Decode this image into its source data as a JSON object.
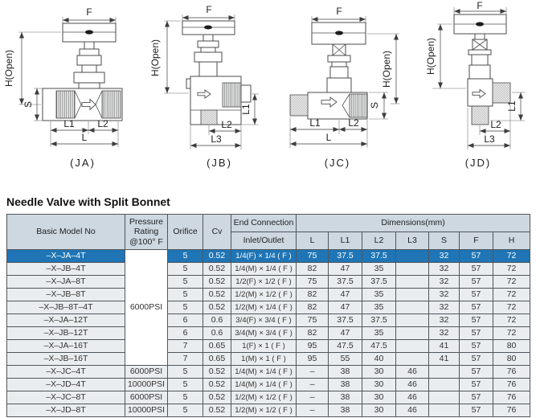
{
  "section": {
    "title": "Needle Valve with Split Bonnet"
  },
  "diagrams": {
    "items": [
      {
        "id": "JA",
        "caption": "(JA)",
        "labels": {
          "f": "F",
          "h": "H(Open)",
          "s": "S",
          "l1": "L1",
          "l2": "L2",
          "l": "L"
        }
      },
      {
        "id": "JB",
        "caption": "(JB)",
        "labels": {
          "f": "F",
          "h": "H(Open)",
          "l1": "L1",
          "l2": "L2",
          "l3": "L3"
        }
      },
      {
        "id": "JC",
        "caption": "(JC)",
        "labels": {
          "f": "F",
          "h": "H(Open)",
          "s": "S",
          "l1": "L1",
          "l2": "L2",
          "l": "L"
        }
      },
      {
        "id": "JD",
        "caption": "(JD)",
        "labels": {
          "f": "F",
          "h": "H(Open)",
          "l1": "L1",
          "l2": "L2",
          "l3": "L3"
        }
      }
    ]
  },
  "table": {
    "headers": {
      "basic_model": "Basic Model No",
      "pressure": "Pressure Rating @100° F",
      "orifice": "Orifice",
      "cv": "Cv",
      "end_connection": "End Connection",
      "inlet_outlet": "Inlet/Outlet",
      "dimensions": "Dimensions(mm)",
      "dims": [
        "L",
        "L1",
        "L2",
        "L3",
        "S",
        "F",
        "H"
      ]
    },
    "pressure_group": {
      "value": "6000PSI",
      "rowspan": 9
    },
    "rows": [
      {
        "model": "–X–JA–4T",
        "pressure": null,
        "orifice": "5",
        "cv": "0.52",
        "conn": "1/4(F) × 1/4 ( F )",
        "dims": [
          "75",
          "37.5",
          "37.5",
          "",
          "32",
          "57",
          "72"
        ],
        "highlight": true
      },
      {
        "model": "–X–JB–4T",
        "pressure": null,
        "orifice": "5",
        "cv": "0.52",
        "conn": "1/4(M) × 1/4 ( F )",
        "dims": [
          "82",
          "47",
          "35",
          "",
          "32",
          "57",
          "72"
        ]
      },
      {
        "model": "–X–JA–8T",
        "pressure": null,
        "orifice": "5",
        "cv": "0.52",
        "conn": "1/2(F) × 1/2 ( F )",
        "dims": [
          "75",
          "37.5",
          "37.5",
          "",
          "32",
          "57",
          "72"
        ]
      },
      {
        "model": "–X–JB–8T",
        "pressure": null,
        "orifice": "5",
        "cv": "0.52",
        "conn": "1/2(M) × 1/2 ( F )",
        "dims": [
          "82",
          "47",
          "35",
          "",
          "32",
          "57",
          "72"
        ]
      },
      {
        "model": "–X–JB–8T–4T",
        "pressure": null,
        "orifice": "5",
        "cv": "0.52",
        "conn": "1/2(M) × 1/4 ( F )",
        "dims": [
          "82",
          "47",
          "35",
          "",
          "32",
          "57",
          "72"
        ]
      },
      {
        "model": "–X–JA–12T",
        "pressure": null,
        "orifice": "6",
        "cv": "0.6",
        "conn": "3/4(F) × 3/4 ( F )",
        "dims": [
          "75",
          "37.5",
          "37.5",
          "",
          "32",
          "57",
          "72"
        ]
      },
      {
        "model": "–X–JB–12T",
        "pressure": null,
        "orifice": "6",
        "cv": "0.6",
        "conn": "3/4(M) × 3/4 ( F )",
        "dims": [
          "82",
          "47",
          "35",
          "",
          "32",
          "57",
          "72"
        ]
      },
      {
        "model": "–X–JA–16T",
        "pressure": null,
        "orifice": "7",
        "cv": "0.65",
        "conn": "1(F) × 1 ( F )",
        "dims": [
          "95",
          "47.5",
          "47.5",
          "",
          "41",
          "57",
          "80"
        ]
      },
      {
        "model": "–X–JB–16T",
        "pressure": null,
        "orifice": "7",
        "cv": "0.65",
        "conn": "1(M) × 1 ( F )",
        "dims": [
          "95",
          "55",
          "40",
          "",
          "41",
          "57",
          "80"
        ]
      },
      {
        "model": "–X–JC–4T",
        "pressure": "6000PSI",
        "orifice": "5",
        "cv": "0.52",
        "conn": "1/4(M) × 1/4 ( F )",
        "dims": [
          "–",
          "38",
          "30",
          "46",
          "",
          "57",
          "76"
        ]
      },
      {
        "model": "–X–JD–4T",
        "pressure": "10000PSI",
        "orifice": "5",
        "cv": "0.52",
        "conn": "1/4(M) × 1/4 ( F )",
        "dims": [
          "–",
          "38",
          "30",
          "46",
          "",
          "57",
          "76"
        ]
      },
      {
        "model": "–X–JC–8T",
        "pressure": "6000PSI",
        "orifice": "5",
        "cv": "0.52",
        "conn": "1/2(M) × 1/2 ( F )",
        "dims": [
          "–",
          "38",
          "30",
          "46",
          "",
          "57",
          "76"
        ]
      },
      {
        "model": "–X–JD–8T",
        "pressure": "10000PSI",
        "orifice": "5",
        "cv": "0.52",
        "conn": "1/2(M) × 1/2 ( F )",
        "dims": [
          "–",
          "38",
          "30",
          "46",
          "",
          "57",
          "76"
        ]
      }
    ]
  },
  "colors": {
    "header_bg": "#cdd8e1",
    "highlight_bg": "#1f75b5",
    "highlight_text": "#ffffff",
    "row_bg": "#eaedef",
    "border": "#4f565c",
    "drawing_line": "#4b4b4b"
  }
}
